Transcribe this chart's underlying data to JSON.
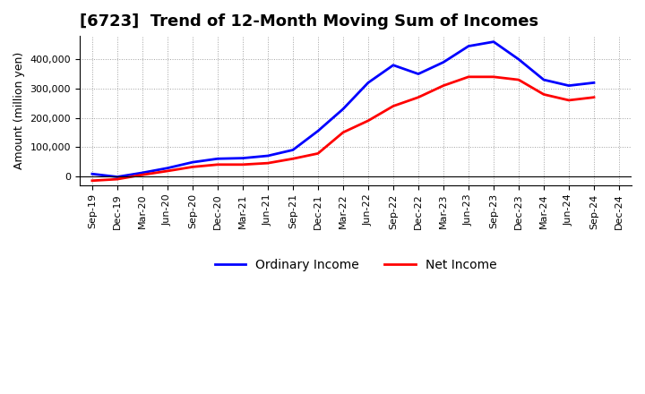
{
  "title": "[6723]  Trend of 12-Month Moving Sum of Incomes",
  "ylabel": "Amount (million yen)",
  "x_labels": [
    "Sep-19",
    "Dec-19",
    "Mar-20",
    "Jun-20",
    "Sep-20",
    "Dec-20",
    "Mar-21",
    "Jun-21",
    "Sep-21",
    "Dec-21",
    "Mar-22",
    "Jun-22",
    "Sep-22",
    "Dec-22",
    "Mar-23",
    "Jun-23",
    "Sep-23",
    "Dec-23",
    "Mar-24",
    "Jun-24",
    "Sep-24",
    "Dec-24"
  ],
  "ordinary_income": [
    8000,
    -2000,
    12000,
    28000,
    48000,
    60000,
    62000,
    70000,
    90000,
    155000,
    230000,
    320000,
    380000,
    350000,
    390000,
    445000,
    460000,
    400000,
    330000,
    310000,
    320000,
    null
  ],
  "net_income": [
    -15000,
    -10000,
    5000,
    18000,
    32000,
    40000,
    40000,
    45000,
    60000,
    78000,
    150000,
    190000,
    240000,
    270000,
    310000,
    340000,
    340000,
    330000,
    280000,
    260000,
    270000,
    null
  ],
  "ordinary_income_color": "#0000FF",
  "net_income_color": "#FF0000",
  "background_color": "#FFFFFF",
  "grid_color": "#888888",
  "ylim": [
    -30000,
    480000
  ],
  "yticks": [
    0,
    100000,
    200000,
    300000,
    400000
  ],
  "legend_labels": [
    "Ordinary Income",
    "Net Income"
  ],
  "title_fontsize": 13,
  "axis_fontsize": 9,
  "tick_fontsize": 8,
  "legend_fontsize": 10,
  "line_width": 2.0
}
